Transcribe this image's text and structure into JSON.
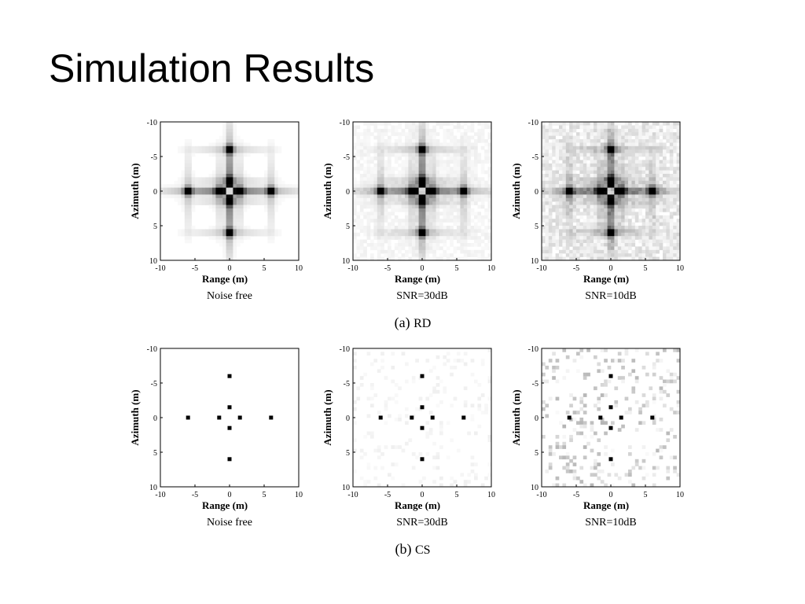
{
  "title": "Simulation Results",
  "axis": {
    "xlabel": "Range (m)",
    "ylabel": "Azimuth (m)",
    "x_ticks": [
      "-10",
      "-5",
      "0",
      "5",
      "10"
    ],
    "y_ticks": [
      "-10",
      "-5",
      "0",
      "5",
      "10"
    ]
  },
  "captions": {
    "rd": {
      "prefix": "(a)",
      "name": "RD"
    },
    "cs": {
      "prefix": "(b)",
      "name": "CS"
    }
  },
  "chart_data": [
    {
      "type": "heatmap",
      "group": "RD",
      "caption": "Noise free",
      "xlabel": "Range (m)",
      "ylabel": "Azimuth (m)",
      "xlim": [
        -10,
        10
      ],
      "ylim": [
        -10,
        10
      ],
      "noise": 0.0,
      "blur": true,
      "targets": [
        [
          -6,
          0
        ],
        [
          -1.5,
          0
        ],
        [
          0,
          0
        ],
        [
          1.5,
          0
        ],
        [
          6,
          0
        ],
        [
          0,
          -6
        ],
        [
          0,
          -1.5
        ],
        [
          0,
          1.5
        ],
        [
          0,
          6
        ]
      ]
    },
    {
      "type": "heatmap",
      "group": "RD",
      "caption": "SNR=30dB",
      "xlabel": "Range (m)",
      "ylabel": "Azimuth (m)",
      "xlim": [
        -10,
        10
      ],
      "ylim": [
        -10,
        10
      ],
      "noise": 0.03,
      "blur": true,
      "targets": [
        [
          -6,
          0
        ],
        [
          -1.5,
          0
        ],
        [
          0,
          0
        ],
        [
          1.5,
          0
        ],
        [
          6,
          0
        ],
        [
          0,
          -6
        ],
        [
          0,
          -1.5
        ],
        [
          0,
          1.5
        ],
        [
          0,
          6
        ]
      ]
    },
    {
      "type": "heatmap",
      "group": "RD",
      "caption": "SNR=10dB",
      "xlabel": "Range (m)",
      "ylabel": "Azimuth (m)",
      "xlim": [
        -10,
        10
      ],
      "ylim": [
        -10,
        10
      ],
      "noise": 0.08,
      "blur": true,
      "targets": [
        [
          -6,
          0
        ],
        [
          -1.5,
          0
        ],
        [
          0,
          0
        ],
        [
          1.5,
          0
        ],
        [
          6,
          0
        ],
        [
          0,
          -6
        ],
        [
          0,
          -1.5
        ],
        [
          0,
          1.5
        ],
        [
          0,
          6
        ]
      ]
    },
    {
      "type": "heatmap",
      "group": "CS",
      "caption": "Noise free",
      "xlabel": "Range (m)",
      "ylabel": "Azimuth (m)",
      "xlim": [
        -10,
        10
      ],
      "ylim": [
        -10,
        10
      ],
      "noise": 0.0,
      "blur": false,
      "targets": [
        [
          -6,
          0
        ],
        [
          -1.5,
          0
        ],
        [
          0,
          -1.5
        ],
        [
          0,
          1.5
        ],
        [
          1.5,
          0
        ],
        [
          6,
          0
        ],
        [
          0,
          -6
        ],
        [
          0,
          6
        ]
      ]
    },
    {
      "type": "heatmap",
      "group": "CS",
      "caption": "SNR=30dB",
      "xlabel": "Range (m)",
      "ylabel": "Azimuth (m)",
      "xlim": [
        -10,
        10
      ],
      "ylim": [
        -10,
        10
      ],
      "noise": 0.04,
      "blur": false,
      "targets": [
        [
          -6,
          0
        ],
        [
          -1.5,
          0
        ],
        [
          0,
          -1.5
        ],
        [
          0,
          1.5
        ],
        [
          1.5,
          0
        ],
        [
          6,
          0
        ],
        [
          0,
          -6
        ],
        [
          0,
          6
        ]
      ]
    },
    {
      "type": "heatmap",
      "group": "CS",
      "caption": "SNR=10dB",
      "xlabel": "Range (m)",
      "ylabel": "Azimuth (m)",
      "xlim": [
        -10,
        10
      ],
      "ylim": [
        -10,
        10
      ],
      "noise": 0.18,
      "blur": false,
      "targets": [
        [
          -6,
          0
        ],
        [
          -1.5,
          0
        ],
        [
          0,
          -1.5
        ],
        [
          0,
          1.5
        ],
        [
          1.5,
          0
        ],
        [
          6,
          0
        ],
        [
          0,
          -6
        ],
        [
          0,
          6
        ]
      ]
    }
  ]
}
